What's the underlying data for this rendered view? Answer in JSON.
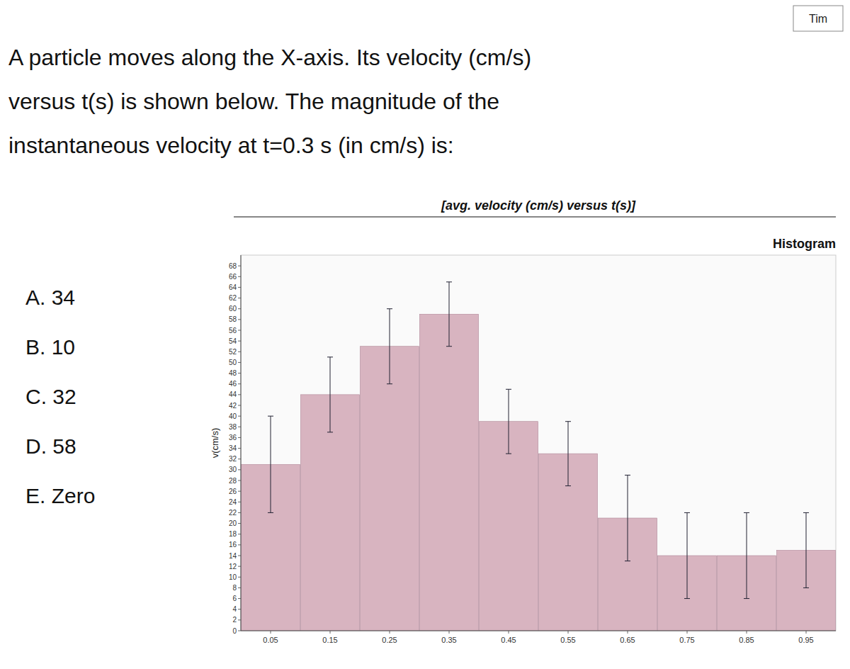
{
  "chart_data": {
    "type": "bar",
    "title": "Histogram",
    "subtitle": "[avg. velocity (cm/s) versus t(s)]",
    "question_lines": [
      "A particle moves along the X-axis. Its velocity (cm/s)",
      "versus t(s)  is shown below. The magnitude of the",
      "instantaneous velocity at t=0.3 s (in cm/s) is:"
    ],
    "answer_choices": [
      "A.  34",
      "B.  10",
      "C.  32",
      "D.  58",
      "E.  Zero"
    ],
    "corner_label": "Tim",
    "ylabel": "v(cm/s)",
    "x": [
      0.05,
      0.15,
      0.25,
      0.35,
      0.45,
      0.55,
      0.65,
      0.75,
      0.85,
      0.95
    ],
    "values": [
      31,
      44,
      53,
      59,
      39,
      33,
      21,
      14,
      14,
      15
    ],
    "errors": [
      9,
      7,
      7,
      6,
      6,
      6,
      8,
      8,
      8,
      7
    ],
    "color": "#d8b4c0",
    "xlim": [
      0.0,
      1.0
    ],
    "xticks": [
      0.05,
      0.15,
      0.25,
      0.35,
      0.45,
      0.55,
      0.65,
      0.75,
      0.85,
      0.95
    ],
    "ylim": [
      0,
      70
    ],
    "yticks": [
      0,
      2,
      4,
      6,
      8,
      10,
      12,
      14,
      16,
      18,
      20,
      22,
      24,
      26,
      28,
      30,
      32,
      34,
      36,
      38,
      40,
      42,
      44,
      46,
      48,
      50,
      52,
      54,
      56,
      58,
      60,
      62,
      64,
      66,
      68
    ],
    "grid": false
  }
}
